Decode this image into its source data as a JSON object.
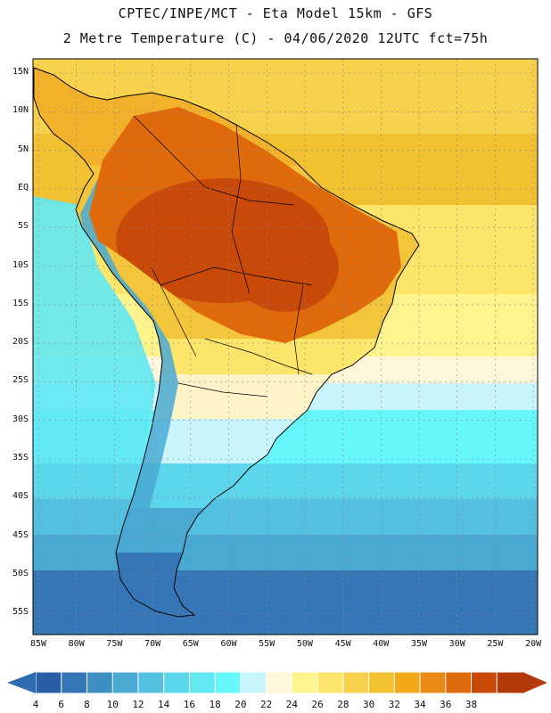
{
  "header": {
    "line1": "CPTEC/INPE/MCT -  Eta Model 15km - GFS",
    "line2": "2 Metre Temperature (C) - 04/06/2020 12UTC fct=75h"
  },
  "map": {
    "lat_labels": [
      "15N",
      "10N",
      "5N",
      "EQ",
      "5S",
      "10S",
      "15S",
      "20S",
      "25S",
      "30S",
      "35S",
      "40S",
      "45S",
      "50S",
      "55S"
    ],
    "lon_labels": [
      "85W",
      "80W",
      "75W",
      "70W",
      "65W",
      "60W",
      "55W",
      "50W",
      "45W",
      "40W",
      "35W",
      "30W",
      "25W",
      "20W"
    ]
  },
  "colorbar": {
    "labels": [
      "4",
      "6",
      "8",
      "10",
      "12",
      "14",
      "16",
      "18",
      "20",
      "22",
      "24",
      "26",
      "28",
      "30",
      "32",
      "34",
      "36",
      "38"
    ],
    "colors": [
      "#2a5fa8",
      "#3577b6",
      "#3f8fc4",
      "#49a9d3",
      "#54c0df",
      "#5bd6ea",
      "#62e8f3",
      "#66f7fb",
      "#c8f4fb",
      "#fff6dc",
      "#fdf48e",
      "#fbe56a",
      "#f6d14c",
      "#f1c132",
      "#f2a818",
      "#ea8916",
      "#df6a0c",
      "#c94908",
      "#b33a0a"
    ]
  }
}
